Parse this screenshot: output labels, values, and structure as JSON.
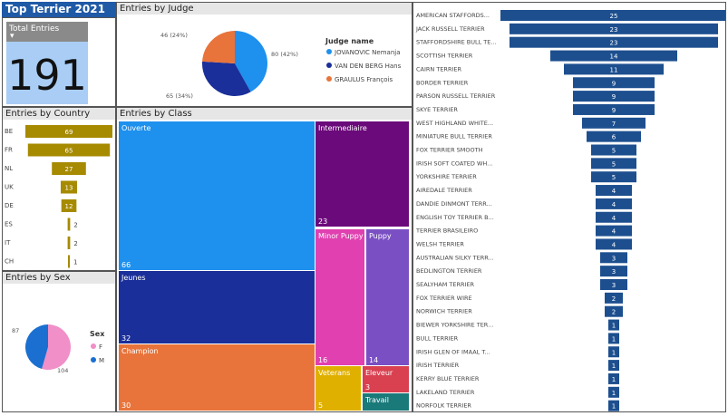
{
  "title": {
    "text": "Top Terrier 2021",
    "bg": "#1f5aa6"
  },
  "total": {
    "label": "Total Entries",
    "arrow": "▾",
    "value": "191",
    "bg": "#a9cdf5",
    "header_bg": "#8a8a8a"
  },
  "panels": {
    "judge": "Entries by Judge",
    "country": "Entries by Country",
    "sex": "Entries by Sex",
    "class": "Entries by Class"
  },
  "chart_data": [
    {
      "type": "pie",
      "name": "judge",
      "legend_title": "Judge name",
      "slices": [
        {
          "label": "JOVANOVIC Nemanja",
          "value": 80,
          "pct": "42%",
          "color": "#1e90ee"
        },
        {
          "label": "VAN DEN BERG Hans",
          "value": 65,
          "pct": "34%",
          "color": "#1a2f99"
        },
        {
          "label": "GRAULUS François",
          "value": 46,
          "pct": "24%",
          "color": "#e8743b"
        }
      ]
    },
    {
      "type": "bar",
      "name": "country",
      "categories": [
        "BE",
        "FR",
        "NL",
        "UK",
        "DE",
        "ES",
        "IT",
        "CH"
      ],
      "values": [
        69,
        65,
        27,
        13,
        12,
        2,
        2,
        1
      ],
      "color": "#a68a00"
    },
    {
      "type": "pie",
      "name": "sex",
      "legend_title": "Sex",
      "slices": [
        {
          "label": "F",
          "value": 104,
          "color": "#f08fc8"
        },
        {
          "label": "M",
          "value": 87,
          "color": "#1a6fd0"
        }
      ]
    },
    {
      "type": "treemap",
      "name": "class",
      "items": [
        {
          "label": "Ouverte",
          "value": 66,
          "color": "#1e90ee"
        },
        {
          "label": "Jeunes",
          "value": 32,
          "color": "#1a2f99"
        },
        {
          "label": "Champion",
          "value": 30,
          "color": "#e8743b"
        },
        {
          "label": "Intermediaire",
          "value": 23,
          "color": "#6b0a7a"
        },
        {
          "label": "Minor Puppy",
          "value": 16,
          "color": "#e040b0"
        },
        {
          "label": "Puppy",
          "value": 14,
          "color": "#7b4fc4"
        },
        {
          "label": "Veterans",
          "value": 5,
          "color": "#e0b000"
        },
        {
          "label": "Eleveur",
          "value": 3,
          "color": "#d94050"
        },
        {
          "label": "Travail",
          "value": "",
          "color": "#1a7a7a"
        }
      ]
    },
    {
      "type": "bar",
      "name": "breed",
      "categories": [
        "AMERICAN STAFFORDS...",
        "JACK RUSSELL TERRIER",
        "STAFFORDSHIRE BULL TE...",
        "SCOTTISH TERRIER",
        "CAIRN TERRIER",
        "BORDER TERRIER",
        "PARSON RUSSELL TERRIER",
        "SKYE TERRIER",
        "WEST HIGHLAND WHITE...",
        "MINIATURE BULL TERRIER",
        "FOX TERRIER SMOOTH",
        "IRISH SOFT COATED WH...",
        "YORKSHIRE TERRIER",
        "AIREDALE TERRIER",
        "DANDIE DINMONT TERR...",
        "ENGLISH TOY TERRIER B...",
        "TERRIER BRASILEIRO",
        "WELSH TERRIER",
        "AUSTRALIAN SILKY TERR...",
        "BEDLINGTON TERRIER",
        "SEALYHAM TERRIER",
        "FOX TERRIER WIRE",
        "NORWICH TERRIER",
        "BIEWER YORKSHIRE TER...",
        "BULL TERRIER",
        "IRISH GLEN OF IMAAL T...",
        "IRISH TERRIER",
        "KERRY BLUE TERRIER",
        "LAKELAND TERRIER",
        "NORFOLK TERRIER"
      ],
      "values": [
        25,
        23,
        23,
        14,
        11,
        9,
        9,
        9,
        7,
        6,
        5,
        5,
        5,
        4,
        4,
        4,
        4,
        4,
        3,
        3,
        3,
        2,
        2,
        1,
        1,
        1,
        1,
        1,
        1,
        1
      ],
      "color": "#1d4f8f"
    }
  ]
}
